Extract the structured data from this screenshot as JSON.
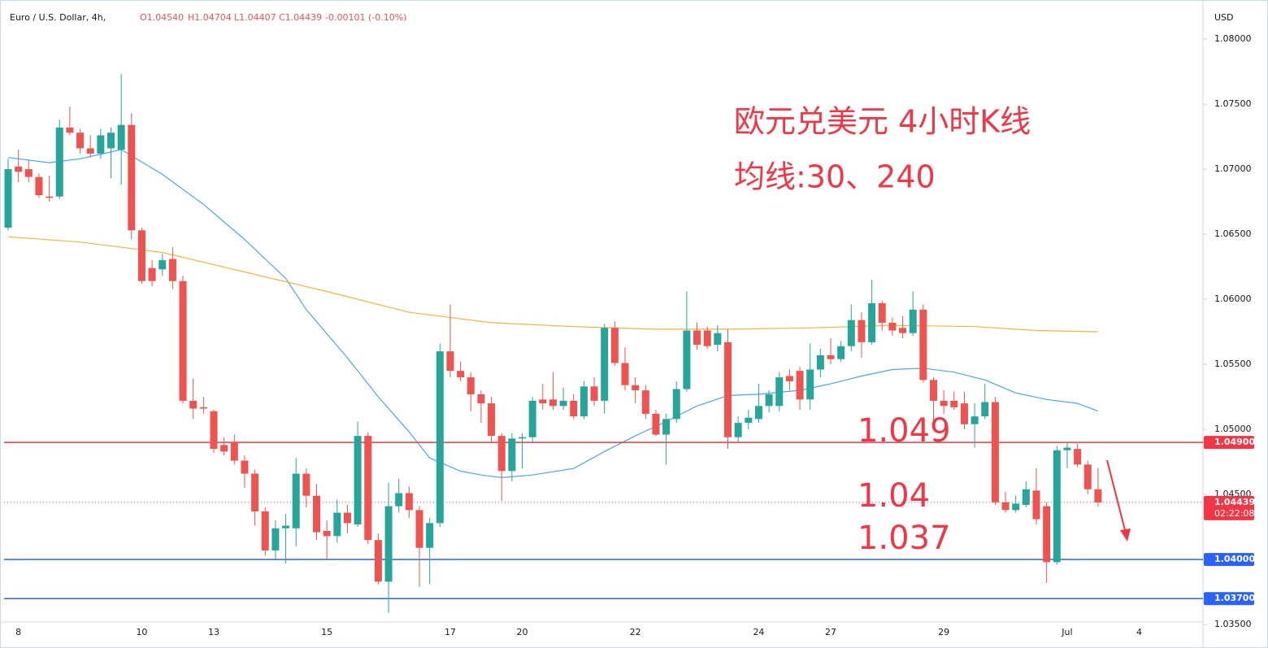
{
  "chart_data": {
    "type": "candlestick",
    "title": "欧元兑美元 4小时K线",
    "subtitle": "均线:30、240",
    "header": {
      "symbol": "Euro / U.S. Dollar, 4h,",
      "values": [
        "O1.04540",
        "H1.04704",
        "L1.04407",
        "C1.04439",
        "-0.00101 (-0.10%)"
      ]
    },
    "currency": "USD",
    "up_color": "#26a69a",
    "down_color": "#ef5350",
    "categories": [
      null,
      "8",
      null,
      null,
      null,
      null,
      null,
      null,
      null,
      null,
      null,
      null,
      null,
      "10",
      null,
      null,
      null,
      null,
      null,
      null,
      "13",
      null,
      null,
      null,
      null,
      null,
      null,
      null,
      null,
      null,
      null,
      "15",
      null,
      null,
      null,
      null,
      null,
      null,
      null,
      null,
      null,
      null,
      null,
      "17",
      null,
      null,
      null,
      null,
      null,
      null,
      "20",
      null,
      null,
      null,
      null,
      null,
      null,
      null,
      null,
      null,
      null,
      "22",
      null,
      null,
      null,
      null,
      null,
      null,
      null,
      null,
      null,
      null,
      null,
      "24",
      null,
      null,
      null,
      null,
      null,
      null,
      "27",
      null,
      null,
      null,
      null,
      null,
      null,
      null,
      null,
      null,
      null,
      "29",
      null,
      null,
      null,
      null,
      null,
      null,
      null,
      null,
      null,
      null,
      null,
      "Jul",
      null,
      null,
      null,
      null,
      null,
      null,
      "4",
      null,
      null,
      null,
      null,
      null
    ],
    "open": [
      1.0655,
      1.0702,
      1.07,
      1.0694,
      1.0679,
      1.0679,
      1.0732,
      1.0728,
      1.0716,
      1.0712,
      1.0716,
      1.0715,
      1.0734,
      1.0653,
      1.0624,
      1.0623,
      1.0631,
      1.0614,
      1.0522,
      1.0517,
      1.0514,
      1.0488,
      1.049,
      1.0476,
      1.0466,
      1.0437,
      1.0407,
      1.0424,
      1.0424,
      1.0466,
      1.0449,
      1.0422,
      1.0418,
      1.0436,
      1.0427,
      1.0495,
      1.0415,
      1.0383,
      1.0441,
      1.0451,
      1.0438,
      1.0409,
      1.0428,
      1.056,
      1.0545,
      1.054,
      1.0527,
      1.052,
      1.0495,
      1.0468,
      1.0493,
      1.0494,
      1.0523,
      1.0523,
      1.0518,
      1.0522,
      1.051,
      1.0533,
      1.0522,
      1.0578,
      1.0551,
      1.0534,
      1.053,
      1.0512,
      1.0496,
      1.0508,
      1.0531,
      1.0576,
      1.0576,
      1.0565,
      1.0567,
      1.0494,
      1.0505,
      1.0508,
      1.0518,
      1.0518,
      1.0541,
      1.0545,
      1.0523,
      1.0546,
      1.0557,
      1.0554,
      1.0564,
      1.0584,
      1.0567,
      1.0597,
      1.0582,
      1.0578,
      1.0574,
      1.0592,
      1.0538,
      1.0522,
      1.0522,
      1.052,
      1.0504,
      1.051,
      1.0521,
      1.0444,
      1.0438,
      1.0442,
      1.0453,
      1.0441,
      1.0398,
      1.0484,
      1.0485,
      1.0473,
      1.0454,
      null,
      null,
      null,
      null,
      null,
      null,
      null,
      null,
      null
    ],
    "high": [
      1.0708,
      1.0715,
      1.0707,
      1.0697,
      1.0695,
      1.0738,
      1.0748,
      1.0731,
      1.0726,
      1.0731,
      1.0732,
      1.0773,
      1.0743,
      1.0655,
      1.063,
      1.0635,
      1.064,
      1.0618,
      1.0539,
      1.0525,
      1.0515,
      1.0494,
      1.0496,
      1.048,
      1.0469,
      1.044,
      1.043,
      1.0435,
      1.0478,
      1.047,
      1.0458,
      1.043,
      1.0446,
      1.0442,
      1.0506,
      1.0498,
      1.042,
      1.0459,
      1.0462,
      1.0456,
      1.0441,
      1.0432,
      1.0566,
      1.0596,
      1.0552,
      1.0544,
      1.053,
      1.0525,
      1.0497,
      1.0497,
      1.0497,
      1.0525,
      1.0535,
      1.0544,
      1.0532,
      1.0527,
      1.0537,
      1.054,
      1.0581,
      1.0583,
      1.0563,
      1.054,
      1.0534,
      1.0515,
      1.0512,
      1.0537,
      1.0606,
      1.0582,
      1.0579,
      1.058,
      1.0577,
      1.051,
      1.0515,
      1.0535,
      1.053,
      1.0544,
      1.0546,
      1.0548,
      1.0566,
      1.0562,
      1.057,
      1.0568,
      1.0596,
      1.059,
      1.0615,
      1.0599,
      1.0586,
      1.0587,
      1.0606,
      1.0596,
      1.054,
      1.053,
      1.0529,
      1.0529,
      1.052,
      1.0535,
      1.0525,
      1.0452,
      1.0449,
      1.046,
      1.047,
      1.0444,
      1.0487,
      1.049,
      1.0489,
      1.0476,
      1.04704,
      null,
      null,
      null,
      null,
      null,
      null,
      null,
      null,
      null
    ],
    "low": [
      1.0653,
      1.069,
      1.069,
      1.0678,
      1.0675,
      1.0677,
      1.0726,
      1.0712,
      1.0709,
      1.0708,
      1.0693,
      1.0688,
      1.0646,
      1.0612,
      1.061,
      1.0618,
      1.0608,
      1.052,
      1.0508,
      1.0512,
      1.0482,
      1.048,
      1.0473,
      1.0455,
      1.0426,
      1.0403,
      1.04,
      1.0397,
      1.041,
      1.044,
      1.0415,
      1.04,
      1.0413,
      1.042,
      1.0425,
      1.0412,
      1.0381,
      1.0359,
      1.0436,
      1.0432,
      1.0379,
      1.0381,
      1.0425,
      1.054,
      1.0537,
      1.0514,
      1.0505,
      1.049,
      1.0445,
      1.046,
      1.047,
      1.049,
      1.0515,
      1.0515,
      1.0515,
      1.0508,
      1.0508,
      1.0518,
      1.0512,
      1.0549,
      1.053,
      1.052,
      1.0508,
      1.0495,
      1.0473,
      1.0505,
      1.0529,
      1.0561,
      1.0562,
      1.056,
      1.0485,
      1.049,
      1.05,
      1.0505,
      1.0513,
      1.0514,
      1.053,
      1.0515,
      1.0515,
      1.054,
      1.055,
      1.0552,
      1.056,
      1.0555,
      1.0565,
      1.0576,
      1.0572,
      1.057,
      1.0572,
      1.0536,
      1.0504,
      1.0512,
      1.0515,
      1.05,
      1.0486,
      1.0508,
      1.0442,
      1.0436,
      1.0436,
      1.044,
      1.0427,
      1.0382,
      1.0396,
      1.047,
      1.0471,
      1.045,
      1.04407,
      null,
      null,
      null,
      null,
      null,
      null,
      null,
      null,
      null
    ],
    "close": [
      1.07,
      1.0698,
      1.0694,
      1.068,
      1.0678,
      1.0732,
      1.0728,
      1.0716,
      1.0712,
      1.0726,
      1.0728,
      1.0734,
      1.0653,
      1.0614,
      1.0614,
      1.063,
      1.0614,
      1.0522,
      1.0516,
      1.0516,
      1.0485,
      1.0483,
      1.0476,
      1.0466,
      1.0437,
      1.0407,
      1.0424,
      1.0426,
      1.0466,
      1.0449,
      1.0421,
      1.0418,
      1.0436,
      1.0428,
      1.0495,
      1.0415,
      1.0383,
      1.0441,
      1.0451,
      1.0438,
      1.0409,
      1.0428,
      1.056,
      1.0545,
      1.054,
      1.0527,
      1.052,
      1.0495,
      1.0468,
      1.0493,
      1.0494,
      1.0522,
      1.052,
      1.0518,
      1.0522,
      1.051,
      1.0533,
      1.0522,
      1.0578,
      1.0551,
      1.0534,
      1.053,
      1.0512,
      1.0496,
      1.0508,
      1.0531,
      1.0576,
      1.0565,
      1.0564,
      1.0574,
      1.0494,
      1.0505,
      1.0509,
      1.0518,
      1.0527,
      1.054,
      1.0537,
      1.0523,
      1.0546,
      1.0557,
      1.0554,
      1.0564,
      1.0584,
      1.0567,
      1.0597,
      1.0582,
      1.0576,
      1.0574,
      1.0592,
      1.0538,
      1.0522,
      1.0518,
      1.0517,
      1.0504,
      1.051,
      1.0521,
      1.0444,
      1.0438,
      1.0443,
      1.0454,
      1.0431,
      1.0398,
      1.0484,
      1.0486,
      1.0473,
      1.0454,
      1.04439,
      null,
      null,
      null,
      null,
      null,
      null,
      null,
      null,
      null
    ],
    "lines": [
      {
        "color": "#4ea5e8",
        "x": [
          0,
          4,
          7,
          11,
          15,
          19,
          23,
          27,
          29,
          33,
          36,
          39,
          41,
          44,
          46,
          48,
          51,
          55,
          58,
          61,
          64,
          67,
          70,
          73,
          77,
          80,
          83,
          86,
          89,
          92,
          95,
          98,
          101,
          104,
          106
        ],
        "values": [
          1.0709,
          1.0705,
          1.0708,
          1.0715,
          1.0696,
          1.0673,
          1.0646,
          1.0616,
          1.0592,
          1.0555,
          1.0525,
          1.0498,
          1.0478,
          1.0468,
          1.0465,
          1.0463,
          1.0465,
          1.047,
          1.0483,
          1.0495,
          1.0506,
          1.0518,
          1.0526,
          1.0527,
          1.053,
          1.0535,
          1.0541,
          1.0546,
          1.0547,
          1.0544,
          1.0538,
          1.0528,
          1.0523,
          1.052,
          1.0514
        ]
      },
      {
        "color": "#f2b63c",
        "x": [
          0,
          7,
          15,
          23,
          31,
          39,
          47,
          55,
          63,
          70,
          78,
          86,
          94,
          100,
          106
        ],
        "values": [
          1.0648,
          1.0644,
          1.0636,
          1.0621,
          1.0606,
          1.059,
          1.0582,
          1.0579,
          1.0577,
          1.0577,
          1.0578,
          1.058,
          1.0579,
          1.0576,
          1.0575
        ]
      }
    ],
    "levels": [
      {
        "value": 1.049,
        "label": "1.04900",
        "color": "#f23645"
      },
      {
        "value": 1.04,
        "label": "1.04000",
        "color": "#2962ff"
      },
      {
        "value": 1.037,
        "label": "1.03700",
        "color": "#2962ff"
      }
    ],
    "annotations": [
      "1.049",
      "1.04",
      "1.037"
    ],
    "last_price": {
      "value": 1.04439,
      "label": "1.04439",
      "countdown": "02:22:08",
      "color": "#f23645"
    },
    "ylim": [
      1.0352,
      1.083
    ],
    "yticks": [
      {
        "value": 1.035,
        "label": "1.03500"
      },
      {
        "value": 1.04,
        "label": "1.04000"
      },
      {
        "value": 1.045,
        "label": "1.04500"
      },
      {
        "value": 1.05,
        "label": "1.05000"
      },
      {
        "value": 1.055,
        "label": "1.05500"
      },
      {
        "value": 1.06,
        "label": "1.06000"
      },
      {
        "value": 1.065,
        "label": "1.06500"
      },
      {
        "value": 1.07,
        "label": "1.07000"
      },
      {
        "value": 1.075,
        "label": "1.07500"
      },
      {
        "value": 1.08,
        "label": "1.08000"
      }
    ]
  }
}
